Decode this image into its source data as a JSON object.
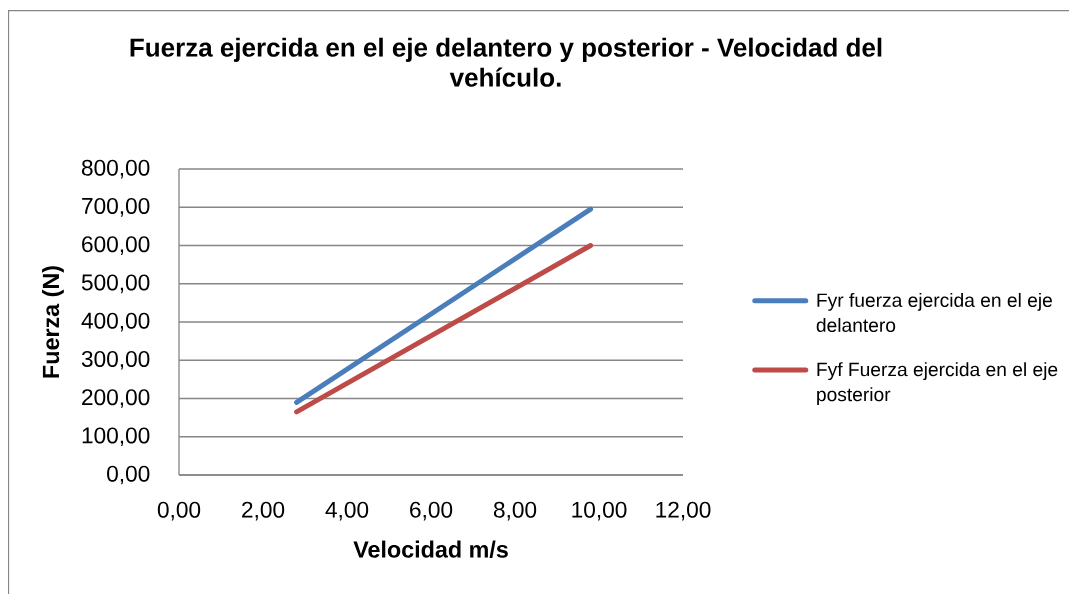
{
  "chart_data": {
    "type": "line",
    "title": "Fuerza ejercida en el eje delantero y posterior - Velocidad del vehículo.",
    "xlabel": "Velocidad m/s",
    "ylabel": "Fuerza (N)",
    "x": [
      2.8,
      9.8
    ],
    "series": [
      {
        "name": "Fyr fuerza ejercida en el eje delantero",
        "color": "#4a7ebb",
        "values": [
          190,
          695
        ]
      },
      {
        "name": "Fyf Fuerza ejercida en el eje posterior",
        "color": "#be4b48",
        "values": [
          165,
          600
        ]
      }
    ],
    "xlim": [
      0,
      12
    ],
    "xticks": [
      {
        "value": 0,
        "label": "0,00"
      },
      {
        "value": 2,
        "label": "2,00"
      },
      {
        "value": 4,
        "label": "4,00"
      },
      {
        "value": 6,
        "label": "6,00"
      },
      {
        "value": 8,
        "label": "8,00"
      },
      {
        "value": 10,
        "label": "10,00"
      },
      {
        "value": 12,
        "label": "12,00"
      }
    ],
    "ylim": [
      0,
      800
    ],
    "yticks": [
      {
        "value": 0,
        "label": "0,00"
      },
      {
        "value": 100,
        "label": "100,00"
      },
      {
        "value": 200,
        "label": "200,00"
      },
      {
        "value": 300,
        "label": "300,00"
      },
      {
        "value": 400,
        "label": "400,00"
      },
      {
        "value": 500,
        "label": "500,00"
      },
      {
        "value": 600,
        "label": "600,00"
      },
      {
        "value": 700,
        "label": "700,00"
      },
      {
        "value": 800,
        "label": "800,00"
      }
    ],
    "grid": "y",
    "legend": "right",
    "line_style": "solid"
  }
}
